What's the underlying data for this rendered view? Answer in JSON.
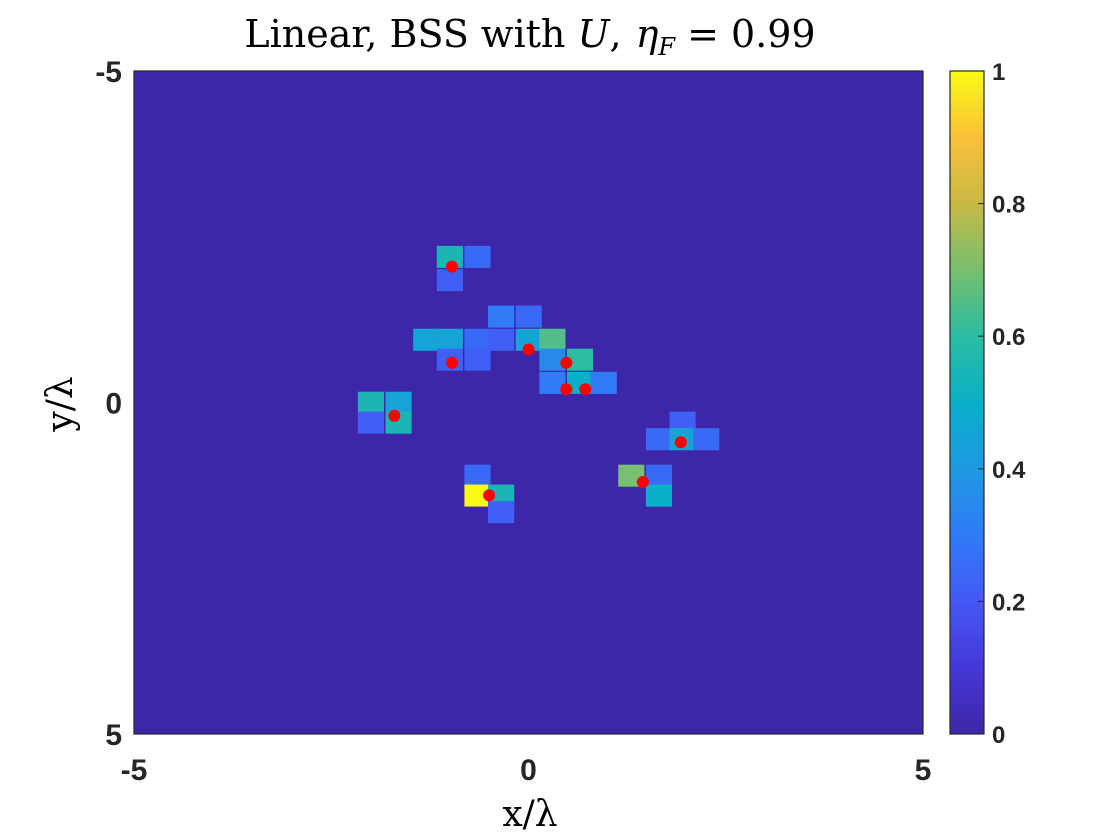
{
  "chart_data": {
    "type": "heatmap",
    "title": "Linear, BSS with U,  ηF = 0.99",
    "title_parts": {
      "prefix": "Linear, BSS with ",
      "var": "U",
      "comma": ",",
      "eta": "η",
      "eta_sub": "F",
      "equals": " = ",
      "value": "0.99"
    },
    "xlabel": "x/λ",
    "ylabel": "y/λ",
    "xlim": [
      -5,
      5
    ],
    "ylim": [
      -5,
      5
    ],
    "y_reversed": true,
    "x_ticks": [
      "-5",
      "0",
      "5"
    ],
    "y_ticks": [
      "-5",
      "0",
      "5"
    ],
    "grid": false,
    "colormap": "parula",
    "clim": [
      0,
      1
    ],
    "colorbar_ticks": [
      "0",
      "0.2",
      "0.4",
      "0.6",
      "0.8",
      "1"
    ],
    "background_value": 0,
    "cell_size": 0.325,
    "cells": [
      {
        "x": -1.0,
        "y": -2.2,
        "v": 0.55
      },
      {
        "x": -0.65,
        "y": -2.2,
        "v": 0.25
      },
      {
        "x": -1.0,
        "y": -1.85,
        "v": 0.22
      },
      {
        "x": -1.3,
        "y": -0.95,
        "v": 0.45
      },
      {
        "x": -1.0,
        "y": -0.95,
        "v": 0.45
      },
      {
        "x": -0.65,
        "y": -0.95,
        "v": 0.25
      },
      {
        "x": -0.35,
        "y": -1.3,
        "v": 0.3
      },
      {
        "x": 0.0,
        "y": -1.3,
        "v": 0.25
      },
      {
        "x": -0.35,
        "y": -0.95,
        "v": 0.22
      },
      {
        "x": 0.0,
        "y": -0.95,
        "v": 0.45
      },
      {
        "x": 0.3,
        "y": -0.95,
        "v": 0.65
      },
      {
        "x": -1.0,
        "y": -0.65,
        "v": 0.22
      },
      {
        "x": -0.65,
        "y": -0.65,
        "v": 0.22
      },
      {
        "x": 0.3,
        "y": -0.65,
        "v": 0.35
      },
      {
        "x": 0.65,
        "y": -0.65,
        "v": 0.6
      },
      {
        "x": 0.3,
        "y": -0.3,
        "v": 0.3
      },
      {
        "x": 0.65,
        "y": -0.3,
        "v": 0.5
      },
      {
        "x": 0.95,
        "y": -0.3,
        "v": 0.3
      },
      {
        "x": -2.0,
        "y": 0.0,
        "v": 0.55
      },
      {
        "x": -1.65,
        "y": 0.0,
        "v": 0.45
      },
      {
        "x": -2.0,
        "y": 0.3,
        "v": 0.22
      },
      {
        "x": -1.65,
        "y": 0.3,
        "v": 0.55
      },
      {
        "x": 1.95,
        "y": 0.3,
        "v": 0.22
      },
      {
        "x": 1.65,
        "y": 0.55,
        "v": 0.25
      },
      {
        "x": 1.95,
        "y": 0.55,
        "v": 0.45
      },
      {
        "x": 2.25,
        "y": 0.55,
        "v": 0.25
      },
      {
        "x": 1.3,
        "y": 1.1,
        "v": 0.7
      },
      {
        "x": 1.65,
        "y": 1.1,
        "v": 0.25
      },
      {
        "x": 1.65,
        "y": 1.4,
        "v": 0.5
      },
      {
        "x": -0.65,
        "y": 1.1,
        "v": 0.25
      },
      {
        "x": -0.65,
        "y": 1.4,
        "v": 1.0
      },
      {
        "x": -0.35,
        "y": 1.4,
        "v": 0.55
      },
      {
        "x": -0.35,
        "y": 1.65,
        "v": 0.22
      }
    ],
    "points": [
      {
        "x": -0.97,
        "y": -2.05
      },
      {
        "x": -0.97,
        "y": -0.6
      },
      {
        "x": 0.0,
        "y": -0.8
      },
      {
        "x": 0.48,
        "y": -0.6
      },
      {
        "x": 0.48,
        "y": -0.2
      },
      {
        "x": 0.72,
        "y": -0.2
      },
      {
        "x": -1.7,
        "y": 0.2
      },
      {
        "x": 1.93,
        "y": 0.6
      },
      {
        "x": 1.45,
        "y": 1.2
      },
      {
        "x": -0.5,
        "y": 1.4
      }
    ],
    "point_color": "#ff0000",
    "background_color": "#3e26a8"
  }
}
